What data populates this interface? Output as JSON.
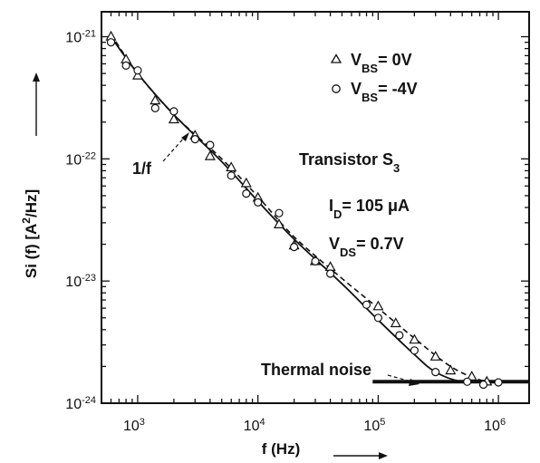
{
  "chart_data": {
    "type": "scatter",
    "x_scale": "log",
    "y_scale": "log",
    "xlim": [
      500,
      1800000
    ],
    "ylim": [
      1e-24,
      1.6e-21
    ],
    "x_ticks": [
      1000,
      10000,
      100000,
      1000000
    ],
    "x_tick_labels": [
      {
        "base": "10",
        "exp": "3"
      },
      {
        "base": "10",
        "exp": "4"
      },
      {
        "base": "10",
        "exp": "5"
      },
      {
        "base": "10",
        "exp": "6"
      }
    ],
    "y_ticks": [
      1e-24,
      1e-23,
      1e-22,
      1e-21
    ],
    "y_tick_labels": [
      {
        "base": "10",
        "exp": "-24"
      },
      {
        "base": "10",
        "exp": "-23"
      },
      {
        "base": "10",
        "exp": "-22"
      },
      {
        "base": "10",
        "exp": "-21"
      }
    ],
    "xlabel": "f (Hz)",
    "ylabel": {
      "prefix": "Si (f) [A",
      "sup": "2",
      "suffix": "/Hz]"
    },
    "legend": [
      {
        "marker": "triangle",
        "prefix": "V",
        "sub": "BS",
        "text": "= 0V"
      },
      {
        "marker": "circle",
        "prefix": "V",
        "sub": "BS",
        "text": "= -4V"
      }
    ],
    "info": {
      "transistor": {
        "text": "Transistor S",
        "sub": "3"
      },
      "id": {
        "prefix": "I",
        "sub": "D",
        "text": "= 105 μA"
      },
      "vds": {
        "prefix": "V",
        "sub": "DS",
        "text": "= 0.7V"
      }
    },
    "annotations": [
      {
        "text": "1/f",
        "points_to": [
          2200,
          2e-22
        ]
      },
      {
        "text": "Thermal noise",
        "points_to": [
          500000,
          1.5e-24
        ]
      }
    ],
    "series": [
      {
        "name": "VBS = 0V",
        "marker": "triangle",
        "line": "dashed",
        "points": [
          [
            600,
            1e-21
          ],
          [
            800,
            6.5e-22
          ],
          [
            1000,
            4.8e-22
          ],
          [
            1400,
            3e-22
          ],
          [
            2000,
            2.1e-22
          ],
          [
            3000,
            1.55e-22
          ],
          [
            4000,
            1.05e-22
          ],
          [
            6000,
            8.5e-23
          ],
          [
            8000,
            6.3e-23
          ],
          [
            10000,
            4.8e-23
          ],
          [
            15000,
            2.9e-23
          ],
          [
            20000,
            1.95e-23
          ],
          [
            30000,
            1.45e-23
          ],
          [
            40000,
            1.3e-23
          ],
          [
            100000,
            6.2e-24
          ],
          [
            140000,
            4.5e-24
          ],
          [
            200000,
            3.3e-24
          ],
          [
            300000,
            2.4e-24
          ],
          [
            400000,
            1.85e-24
          ],
          [
            600000,
            1.65e-24
          ],
          [
            800000,
            1.5e-24
          ]
        ],
        "curve": [
          [
            600,
            1.05e-21
          ],
          [
            1000,
            5e-22
          ],
          [
            2000,
            2.3e-22
          ],
          [
            5000,
            1e-22
          ],
          [
            10000,
            4.9e-23
          ],
          [
            20000,
            2.3e-23
          ],
          [
            50000,
            1.05e-23
          ],
          [
            100000,
            6e-24
          ],
          [
            200000,
            3.4e-24
          ],
          [
            400000,
            2e-24
          ],
          [
            700000,
            1.55e-24
          ],
          [
            1000000,
            1.5e-24
          ]
        ]
      },
      {
        "name": "VBS = -4V",
        "marker": "circle",
        "line": "solid",
        "points": [
          [
            600,
            9e-22
          ],
          [
            800,
            5.8e-22
          ],
          [
            1000,
            5.3e-22
          ],
          [
            1400,
            2.6e-22
          ],
          [
            2000,
            2.45e-22
          ],
          [
            3000,
            1.45e-22
          ],
          [
            4000,
            1.3e-22
          ],
          [
            6000,
            7.3e-23
          ],
          [
            8000,
            5.2e-23
          ],
          [
            10000,
            4.4e-23
          ],
          [
            15000,
            3.6e-23
          ],
          [
            20000,
            1.9e-23
          ],
          [
            30000,
            1.45e-23
          ],
          [
            40000,
            1.15e-23
          ],
          [
            80000,
            6.4e-24
          ],
          [
            100000,
            5e-24
          ],
          [
            150000,
            3.6e-24
          ],
          [
            200000,
            2.7e-24
          ],
          [
            300000,
            1.8e-24
          ],
          [
            550000,
            1.5e-24
          ],
          [
            750000,
            1.42e-24
          ],
          [
            1000000,
            1.48e-24
          ]
        ],
        "curve": [
          [
            600,
            1e-21
          ],
          [
            1000,
            5e-22
          ],
          [
            2000,
            2.3e-22
          ],
          [
            5000,
            9.5e-23
          ],
          [
            10000,
            4.5e-23
          ],
          [
            20000,
            2.2e-23
          ],
          [
            50000,
            9.5e-24
          ],
          [
            100000,
            4.8e-24
          ],
          [
            200000,
            2.5e-24
          ],
          [
            300000,
            1.8e-24
          ],
          [
            500000,
            1.5e-24
          ],
          [
            1000000,
            1.5e-24
          ]
        ]
      },
      {
        "name": "Thermal noise",
        "marker": "none",
        "line": "thick",
        "curve": [
          [
            90000,
            1.5e-24
          ],
          [
            1800000,
            1.5e-24
          ]
        ]
      }
    ]
  }
}
